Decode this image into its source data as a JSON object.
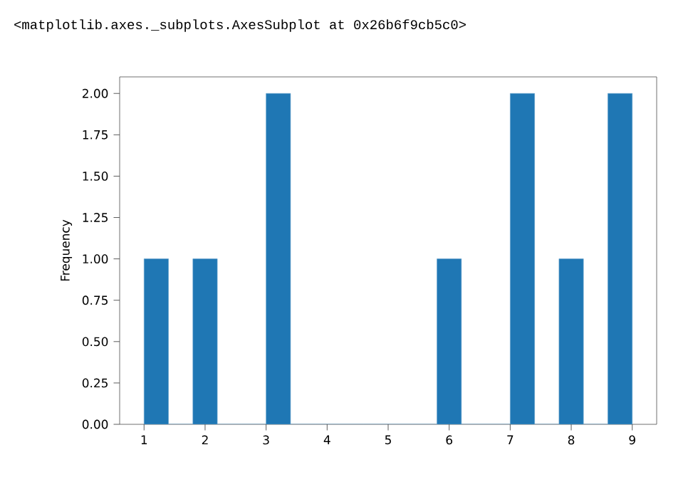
{
  "chart_data": {
    "type": "histogram",
    "ylabel": "Frequency",
    "annotations": [
      "<matplotlib.axes._subplots.AxesSubplot at 0x26b6f9cb5c0>"
    ],
    "bins": [
      1,
      1.4,
      1.8,
      2.2,
      2.6,
      3.0,
      3.4,
      3.8,
      4.2,
      4.6,
      5.0,
      5.4,
      5.8,
      6.2,
      6.6,
      7.0,
      7.4,
      7.8,
      8.2,
      8.6,
      9.0
    ],
    "values": [
      1,
      0,
      1,
      0,
      0,
      2,
      0,
      0,
      0,
      0,
      0,
      0,
      1,
      0,
      0,
      2,
      0,
      1,
      0,
      2
    ],
    "color": "#1f77b4",
    "xlim": [
      0.6,
      9.4
    ],
    "ylim": [
      0,
      2.1
    ],
    "xticks": [
      1,
      2,
      3,
      4,
      5,
      6,
      7,
      8,
      9
    ],
    "yticks": [
      {
        "value": 0,
        "label": "0.00"
      },
      {
        "value": 0.25,
        "label": "0.25"
      },
      {
        "value": 0.5,
        "label": "0.50"
      },
      {
        "value": 0.75,
        "label": "0.75"
      },
      {
        "value": 1,
        "label": "1.00"
      },
      {
        "value": 1.25,
        "label": "1.25"
      },
      {
        "value": 1.5,
        "label": "1.50"
      },
      {
        "value": 1.75,
        "label": "1.75"
      },
      {
        "value": 2,
        "label": "2.00"
      }
    ],
    "tick_labels": "xy"
  }
}
